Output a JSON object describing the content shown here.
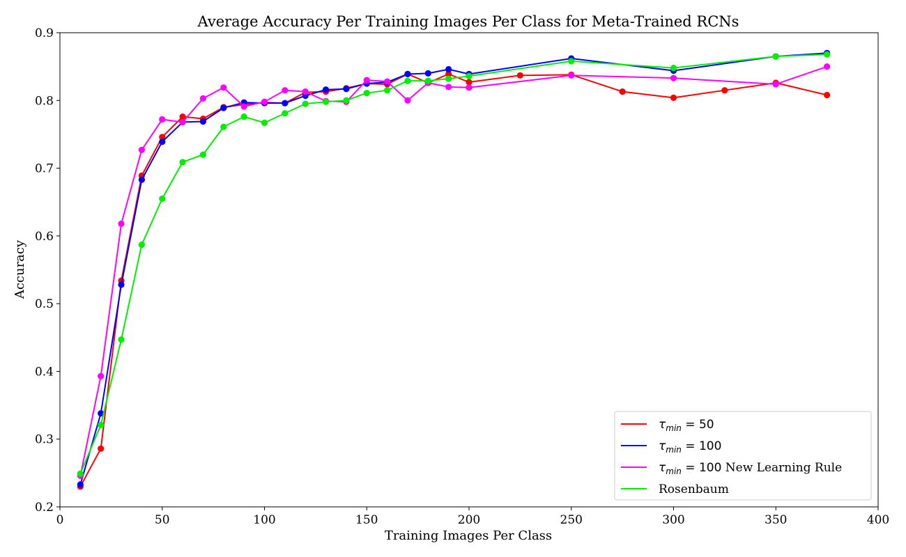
{
  "chart_data": {
    "type": "line",
    "title": "Average Accuracy Per Training Images Per Class for Meta-Trained RCNs",
    "xlabel": "Training Images Per Class",
    "ylabel": "Accuracy",
    "xlim": [
      0,
      400
    ],
    "ylim": [
      0.2,
      0.9
    ],
    "xticks": [
      0,
      50,
      100,
      150,
      200,
      250,
      300,
      350,
      400
    ],
    "yticks": [
      0.2,
      0.3,
      0.4,
      0.5,
      0.6,
      0.7,
      0.8,
      0.9
    ],
    "xtick_labels": [
      "0",
      "50",
      "100",
      "150",
      "200",
      "250",
      "300",
      "350",
      "400"
    ],
    "ytick_labels": [
      "0.2",
      "0.3",
      "0.4",
      "0.5",
      "0.6",
      "0.7",
      "0.8",
      "0.9"
    ],
    "grid": false,
    "legend_position": "lower-right",
    "series": [
      {
        "name": "τmin = 50",
        "legend": {
          "symbol": "τ",
          "sub": "min",
          "rest": " = 50",
          "suffix": ""
        },
        "color": "#ff0000",
        "x": [
          10,
          20,
          30,
          40,
          50,
          60,
          70,
          80,
          90,
          100,
          110,
          120,
          130,
          140,
          150,
          160,
          170,
          180,
          190,
          200,
          225,
          250,
          275,
          300,
          325,
          350,
          375
        ],
        "y": [
          0.23,
          0.286,
          0.534,
          0.689,
          0.746,
          0.776,
          0.773,
          0.79,
          0.794,
          0.797,
          0.796,
          0.812,
          0.813,
          0.818,
          0.825,
          0.824,
          0.839,
          0.826,
          0.839,
          0.827,
          0.837,
          0.838,
          0.813,
          0.804,
          0.815,
          0.826,
          0.808
        ]
      },
      {
        "name": "τmin = 100",
        "legend": {
          "symbol": "τ",
          "sub": "min",
          "rest": " = 100",
          "suffix": ""
        },
        "color": "#0000ff",
        "x": [
          10,
          20,
          30,
          40,
          50,
          60,
          70,
          80,
          90,
          100,
          110,
          120,
          130,
          140,
          150,
          160,
          170,
          180,
          190,
          200,
          250,
          300,
          350,
          375
        ],
        "y": [
          0.233,
          0.338,
          0.528,
          0.683,
          0.739,
          0.768,
          0.769,
          0.789,
          0.797,
          0.796,
          0.796,
          0.807,
          0.816,
          0.817,
          0.825,
          0.827,
          0.839,
          0.84,
          0.846,
          0.839,
          0.862,
          0.844,
          0.865,
          0.87
        ]
      },
      {
        "name": "τmin = 100 New Learning Rule",
        "legend": {
          "symbol": "τ",
          "sub": "min",
          "rest": " = 100",
          "suffix": " New Learning Rule"
        },
        "color": "#ff00ff",
        "x": [
          10,
          20,
          30,
          40,
          50,
          60,
          70,
          80,
          90,
          100,
          110,
          120,
          130,
          140,
          150,
          160,
          170,
          180,
          190,
          200,
          250,
          300,
          350,
          375
        ],
        "y": [
          0.246,
          0.393,
          0.618,
          0.727,
          0.772,
          0.768,
          0.803,
          0.819,
          0.791,
          0.798,
          0.815,
          0.813,
          0.799,
          0.798,
          0.83,
          0.828,
          0.8,
          0.826,
          0.82,
          0.819,
          0.837,
          0.833,
          0.824,
          0.85
        ]
      },
      {
        "name": "Rosenbaum",
        "legend": {
          "symbol": "",
          "sub": "",
          "rest": "",
          "suffix": "Rosenbaum"
        },
        "color": "#00ee00",
        "x": [
          10,
          20,
          30,
          40,
          50,
          60,
          70,
          80,
          90,
          100,
          110,
          120,
          130,
          140,
          150,
          160,
          170,
          180,
          190,
          200,
          250,
          300,
          350,
          375
        ],
        "y": [
          0.249,
          0.321,
          0.447,
          0.587,
          0.655,
          0.709,
          0.72,
          0.761,
          0.776,
          0.767,
          0.781,
          0.795,
          0.798,
          0.8,
          0.811,
          0.815,
          0.829,
          0.829,
          0.832,
          0.836,
          0.858,
          0.848,
          0.865,
          0.868
        ]
      }
    ]
  }
}
